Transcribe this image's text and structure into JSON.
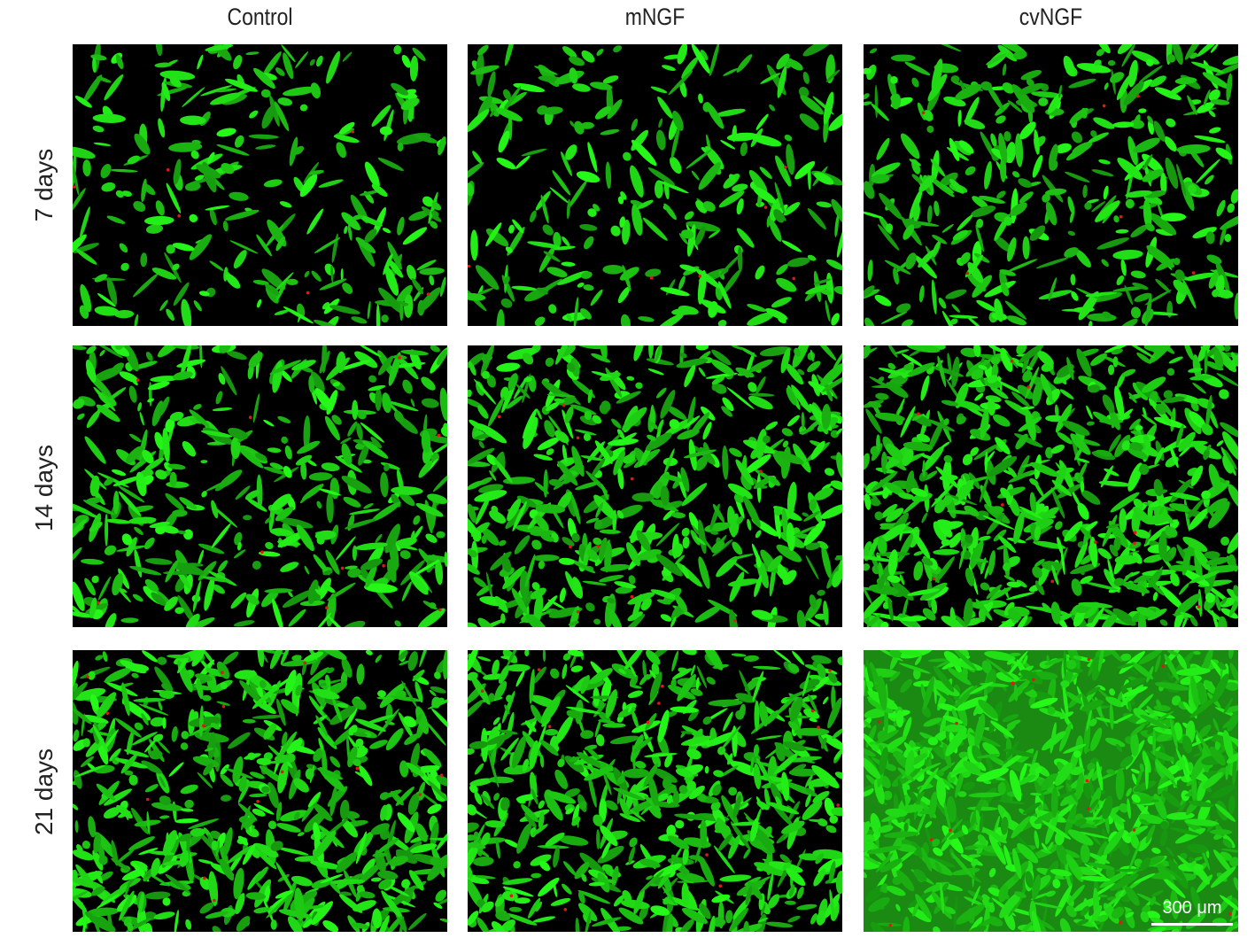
{
  "columns": [
    "Control",
    "mNGF",
    "cvNGF"
  ],
  "rows": [
    "7 days",
    "14 days",
    "21 days"
  ],
  "scale_bar": "300 μm",
  "colors": {
    "live_stain": "#22e01a",
    "dead_stain": "#e01818",
    "background": "#000000"
  }
}
